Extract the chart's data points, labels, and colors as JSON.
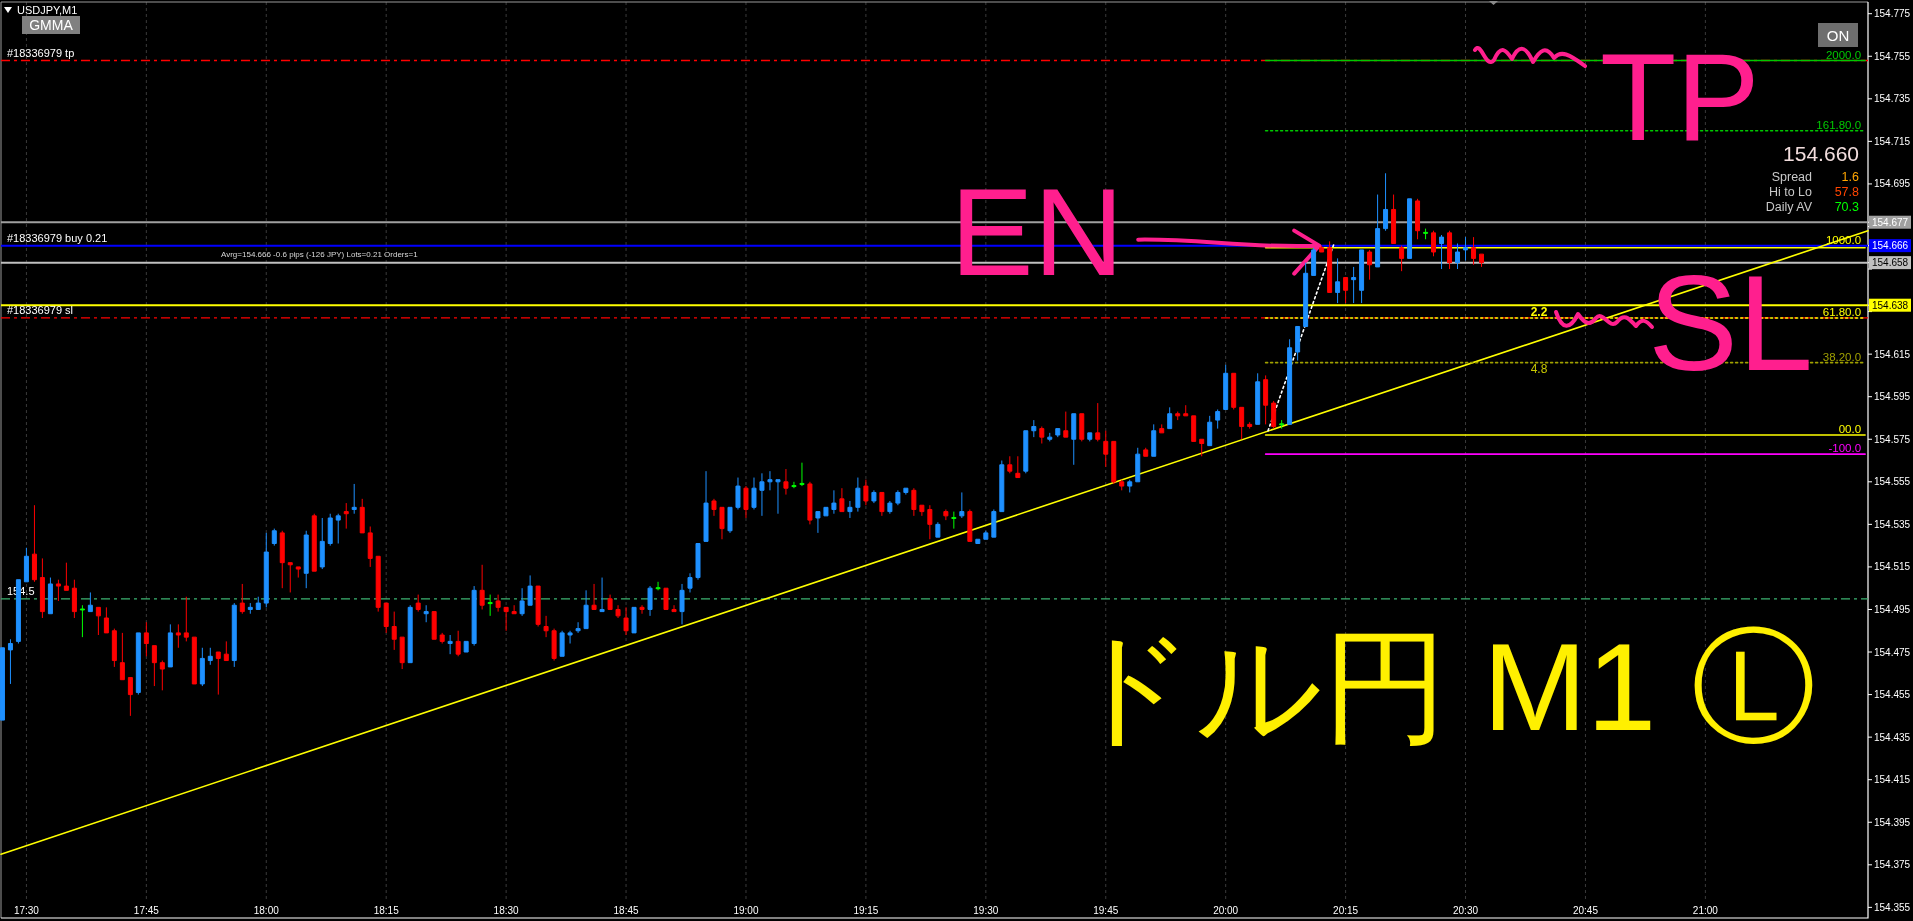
{
  "chart_data": {
    "type": "candlestick",
    "title": "USDJPY,M1",
    "x": [
      17.45,
      17.4667,
      17.4833,
      17.5,
      17.5167,
      17.5333,
      17.55,
      17.5667,
      17.5833,
      17.6,
      17.6167,
      17.6333,
      17.65,
      17.6667,
      17.6833,
      17.7,
      17.7167,
      17.7333,
      17.75,
      17.7667,
      17.7833,
      17.8,
      17.8167,
      17.8333,
      17.85,
      17.8667,
      17.8833,
      17.9,
      17.9167,
      17.9333,
      17.95,
      17.9667,
      17.9833,
      18,
      18.0167,
      18.0333,
      18.05,
      18.0667,
      18.0833,
      18.1,
      18.1167,
      18.1333,
      18.15,
      18.1667,
      18.1833,
      18.2,
      18.2167,
      18.2333,
      18.25,
      18.2667,
      18.2833,
      18.3,
      18.3167,
      18.3333,
      18.35,
      18.3667,
      18.3833,
      18.4,
      18.4167,
      18.4333,
      18.45,
      18.4667,
      18.4833,
      18.5,
      18.5167,
      18.5333,
      18.55,
      18.5667,
      18.5833,
      18.6,
      18.6167,
      18.6333,
      18.65,
      18.6667,
      18.6833,
      18.7,
      18.7167,
      18.7333,
      18.75,
      18.7667,
      18.7833,
      18.8,
      18.8167,
      18.8333,
      18.85,
      18.8667,
      18.8833,
      18.9,
      18.9167,
      18.9333,
      18.95,
      18.9667,
      18.9833,
      19,
      19.0167,
      19.0333,
      19.05,
      19.0667,
      19.0833,
      19.1,
      19.1167,
      19.1333,
      19.15,
      19.1667,
      19.1833,
      19.2,
      19.2167,
      19.2333,
      19.25,
      19.2667,
      19.2833,
      19.3,
      19.3167,
      19.3333,
      19.35,
      19.3667,
      19.3833,
      19.4,
      19.4167,
      19.4333,
      19.45,
      19.4667,
      19.4833,
      19.5,
      19.5167,
      19.5333,
      19.55,
      19.5667,
      19.5833,
      19.6,
      19.6167,
      19.6333,
      19.65,
      19.6667,
      19.6833,
      19.7,
      19.7167,
      19.7333,
      19.75,
      19.7667,
      19.7833,
      19.8,
      19.8167,
      19.8333,
      19.85,
      19.8667,
      19.8833,
      19.9,
      19.9167,
      19.9333,
      19.95,
      19.9667,
      19.9833,
      20,
      20.0167,
      20.0333,
      20.05,
      20.0667,
      20.0833,
      20.1,
      20.1167,
      20.1333,
      20.15,
      20.1667,
      20.1833,
      20.2,
      20.2167,
      20.2333,
      20.25,
      20.2667,
      20.2833,
      20.3,
      20.3167,
      20.3333,
      20.35,
      20.3667,
      20.3833,
      20.4,
      20.4167,
      20.4333,
      20.45,
      20.4667,
      20.4833,
      20.5,
      20.5167,
      20.5333
    ],
    "ohlc": [
      [
        154.443,
        154.477,
        154.443,
        154.477
      ],
      [
        154.476,
        154.481,
        154.46,
        154.479
      ],
      [
        154.48,
        154.509,
        154.479,
        154.509
      ],
      [
        154.508,
        154.524,
        154.508,
        154.52
      ],
      [
        154.521,
        154.544,
        154.508,
        154.509
      ],
      [
        154.51,
        154.519,
        154.491,
        154.494
      ],
      [
        154.493,
        154.51,
        154.493,
        154.507
      ],
      [
        154.507,
        154.509,
        154.499,
        154.506
      ],
      [
        154.506,
        154.517,
        154.504,
        154.504
      ],
      [
        154.505,
        154.509,
        154.491,
        154.494
      ],
      [
        154.495,
        154.497,
        154.482,
        154.495
      ],
      [
        154.494,
        154.503,
        154.494,
        154.497
      ],
      [
        154.496,
        154.496,
        154.483,
        154.492
      ],
      [
        154.491,
        154.496,
        154.484,
        154.484
      ],
      [
        154.485,
        154.486,
        154.468,
        154.471
      ],
      [
        154.47,
        154.484,
        154.462,
        154.462
      ],
      [
        154.463,
        154.463,
        154.445,
        154.455
      ],
      [
        154.456,
        154.484,
        154.455,
        154.484
      ],
      [
        154.484,
        154.489,
        154.473,
        154.479
      ],
      [
        154.478,
        154.478,
        154.459,
        154.47
      ],
      [
        154.47,
        154.471,
        154.457,
        154.467
      ],
      [
        154.468,
        154.488,
        154.468,
        154.484
      ],
      [
        154.484,
        154.488,
        154.477,
        154.483
      ],
      [
        154.484,
        154.501,
        154.48,
        154.482
      ],
      [
        154.482,
        154.482,
        154.46,
        154.46
      ],
      [
        154.46,
        154.477,
        154.459,
        154.472
      ],
      [
        154.471,
        154.477,
        154.469,
        154.473
      ],
      [
        154.475,
        154.475,
        154.455,
        154.472
      ],
      [
        154.474,
        154.48,
        154.471,
        154.471
      ],
      [
        154.471,
        154.498,
        154.468,
        154.497
      ],
      [
        154.498,
        154.507,
        154.493,
        154.494
      ],
      [
        154.495,
        154.498,
        154.493,
        154.496
      ],
      [
        154.495,
        154.501,
        154.495,
        154.498
      ],
      [
        154.498,
        154.531,
        154.496,
        154.522
      ],
      [
        154.526,
        154.533,
        154.525,
        154.532
      ],
      [
        154.531,
        154.532,
        154.505,
        154.517
      ],
      [
        154.517,
        154.517,
        154.503,
        154.516
      ],
      [
        154.515,
        154.515,
        154.51,
        154.514
      ],
      [
        154.512,
        154.532,
        154.505,
        154.53
      ],
      [
        154.539,
        154.54,
        154.513,
        154.513
      ],
      [
        154.515,
        154.538,
        154.514,
        154.527
      ],
      [
        154.526,
        154.54,
        154.525,
        154.538
      ],
      [
        154.537,
        154.54,
        154.526,
        154.539
      ],
      [
        154.541,
        154.545,
        154.533,
        154.54
      ],
      [
        154.542,
        154.554,
        154.54,
        154.543
      ],
      [
        154.543,
        154.547,
        154.531,
        154.531
      ],
      [
        154.531,
        154.534,
        154.515,
        154.519
      ],
      [
        154.52,
        154.52,
        154.494,
        154.496
      ],
      [
        154.498,
        154.498,
        154.484,
        154.487
      ],
      [
        154.487,
        154.494,
        154.476,
        154.481
      ],
      [
        154.482,
        154.482,
        154.467,
        154.47
      ],
      [
        154.47,
        154.497,
        154.47,
        154.496
      ],
      [
        154.498,
        154.502,
        154.494,
        154.495
      ],
      [
        154.493,
        154.497,
        154.489,
        154.494
      ],
      [
        154.494,
        154.494,
        154.481,
        154.481
      ],
      [
        154.483,
        154.484,
        154.479,
        154.48
      ],
      [
        154.479,
        154.483,
        154.474,
        154.48
      ],
      [
        154.48,
        154.485,
        154.473,
        154.474
      ],
      [
        154.475,
        154.48,
        154.475,
        154.48
      ],
      [
        154.479,
        154.506,
        154.478,
        154.504
      ],
      [
        154.504,
        154.516,
        154.495,
        154.497
      ],
      [
        154.498,
        154.502,
        154.492,
        154.498
      ],
      [
        154.499,
        154.502,
        154.494,
        154.496
      ],
      [
        154.496,
        154.496,
        154.485,
        154.494
      ],
      [
        154.494,
        154.497,
        154.493,
        154.493
      ],
      [
        154.493,
        154.505,
        154.492,
        154.499
      ],
      [
        154.497,
        154.511,
        154.497,
        154.506
      ],
      [
        154.506,
        154.506,
        154.487,
        154.488
      ],
      [
        154.487,
        154.492,
        154.482,
        154.485
      ],
      [
        154.485,
        154.486,
        154.471,
        154.472
      ],
      [
        154.473,
        154.485,
        154.473,
        154.484
      ],
      [
        154.483,
        154.485,
        154.479,
        154.484
      ],
      [
        154.485,
        154.489,
        154.484,
        154.486
      ],
      [
        154.486,
        154.504,
        154.486,
        154.497
      ],
      [
        154.497,
        154.507,
        154.495,
        154.495
      ],
      [
        154.494,
        154.51,
        154.494,
        154.495
      ],
      [
        154.5,
        154.502,
        154.495,
        154.495
      ],
      [
        154.495,
        154.497,
        154.491,
        154.492
      ],
      [
        154.491,
        154.496,
        154.483,
        154.485
      ],
      [
        154.484,
        154.496,
        154.484,
        154.496
      ],
      [
        154.496,
        154.497,
        154.493,
        154.495
      ],
      [
        154.495,
        154.506,
        154.492,
        154.505
      ],
      [
        154.505,
        154.508,
        154.504,
        154.505
      ],
      [
        154.505,
        154.505,
        154.495,
        154.495
      ],
      [
        154.495,
        154.497,
        154.494,
        154.494
      ],
      [
        154.494,
        154.507,
        154.488,
        154.504
      ],
      [
        154.505,
        154.512,
        154.503,
        154.51
      ],
      [
        154.51,
        154.526,
        154.509,
        154.526
      ],
      [
        154.527,
        154.56,
        154.527,
        154.545
      ],
      [
        154.546,
        154.547,
        154.539,
        154.542
      ],
      [
        154.543,
        154.543,
        154.528,
        154.533
      ],
      [
        154.532,
        154.543,
        154.531,
        154.543
      ],
      [
        154.543,
        154.557,
        154.542,
        154.553
      ],
      [
        154.552,
        154.553,
        154.538,
        154.542
      ],
      [
        154.543,
        154.557,
        154.542,
        154.552
      ],
      [
        154.551,
        154.559,
        154.539,
        154.555
      ],
      [
        154.555,
        154.56,
        154.551,
        154.556
      ],
      [
        154.555,
        154.556,
        154.54,
        154.556
      ],
      [
        154.555,
        154.561,
        154.549,
        154.552
      ],
      [
        154.553,
        154.555,
        154.552,
        154.553
      ],
      [
        154.554,
        154.564,
        154.553,
        154.554
      ],
      [
        154.554,
        154.555,
        154.535,
        154.537
      ],
      [
        154.538,
        154.541,
        154.531,
        154.541
      ],
      [
        154.539,
        154.543,
        154.539,
        154.543
      ],
      [
        154.542,
        154.551,
        154.54,
        154.545
      ],
      [
        154.547,
        154.552,
        154.541,
        154.541
      ],
      [
        154.541,
        154.546,
        154.538,
        154.543
      ],
      [
        154.543,
        154.557,
        154.541,
        154.552
      ],
      [
        154.553,
        154.556,
        154.544,
        154.546
      ],
      [
        154.546,
        154.551,
        154.545,
        154.55
      ],
      [
        154.55,
        154.55,
        154.539,
        154.541
      ],
      [
        154.541,
        154.546,
        154.54,
        154.545
      ],
      [
        154.545,
        154.551,
        154.544,
        154.55
      ],
      [
        154.55,
        154.552,
        154.549,
        154.552
      ],
      [
        154.551,
        154.552,
        154.539,
        154.542
      ],
      [
        154.544,
        154.544,
        154.539,
        154.541
      ],
      [
        154.542,
        154.544,
        154.528,
        154.535
      ],
      [
        154.529,
        154.536,
        154.529,
        154.535
      ],
      [
        154.541,
        154.542,
        154.537,
        154.539
      ],
      [
        154.538,
        154.541,
        154.533,
        154.538
      ],
      [
        154.539,
        154.55,
        154.538,
        154.541
      ],
      [
        154.541,
        154.542,
        154.527,
        154.527
      ],
      [
        154.526,
        154.528,
        154.526,
        154.528
      ],
      [
        154.528,
        154.532,
        154.528,
        154.531
      ],
      [
        154.529,
        154.542,
        154.529,
        154.541
      ],
      [
        154.541,
        154.565,
        154.541,
        154.563
      ],
      [
        154.563,
        154.567,
        154.559,
        154.56
      ],
      [
        154.559,
        154.567,
        154.557,
        154.557
      ],
      [
        154.56,
        154.579,
        154.559,
        154.579
      ],
      [
        154.579,
        154.584,
        154.576,
        154.581
      ],
      [
        154.58,
        154.581,
        154.573,
        154.576
      ],
      [
        154.575,
        154.578,
        154.574,
        154.576
      ],
      [
        154.577,
        154.58,
        154.576,
        154.58
      ],
      [
        154.579,
        154.588,
        154.576,
        154.576
      ],
      [
        154.575,
        154.587,
        154.563,
        154.587
      ],
      [
        154.587,
        154.587,
        154.574,
        154.575
      ],
      [
        154.575,
        154.578,
        154.574,
        154.578
      ],
      [
        154.578,
        154.592,
        154.574,
        154.575
      ],
      [
        154.574,
        154.579,
        154.562,
        154.568
      ],
      [
        154.574,
        154.574,
        154.554,
        154.555
      ],
      [
        154.555,
        154.556,
        154.551,
        154.553
      ],
      [
        154.553,
        154.556,
        154.55,
        154.555
      ],
      [
        154.555,
        154.571,
        154.555,
        154.568
      ],
      [
        154.57,
        154.571,
        154.567,
        154.567
      ],
      [
        154.567,
        154.582,
        154.567,
        154.579
      ],
      [
        154.58,
        154.582,
        154.578,
        154.578
      ],
      [
        154.58,
        154.59,
        154.58,
        154.587
      ],
      [
        154.587,
        154.588,
        154.584,
        154.586
      ],
      [
        154.587,
        154.591,
        154.586,
        154.586
      ],
      [
        154.586,
        154.586,
        154.574,
        154.574
      ],
      [
        154.575,
        154.575,
        154.567,
        154.573
      ],
      [
        154.572,
        154.586,
        154.572,
        154.583
      ],
      [
        154.584,
        154.589,
        154.58,
        154.588
      ],
      [
        154.589,
        154.61,
        154.589,
        154.606
      ],
      [
        154.606,
        154.606,
        154.589,
        154.59
      ],
      [
        154.59,
        154.59,
        154.575,
        154.581
      ],
      [
        154.582,
        154.583,
        154.58,
        154.581
      ],
      [
        154.582,
        154.606,
        154.582,
        154.602
      ],
      [
        154.603,
        154.605,
        154.582,
        154.591
      ],
      [
        154.592,
        154.593,
        154.58,
        154.581
      ],
      [
        154.582,
        154.584,
        154.58,
        154.582
      ],
      [
        154.582,
        154.622,
        154.582,
        154.618
      ],
      [
        154.616,
        154.628,
        154.612,
        154.628
      ],
      [
        154.628,
        154.658,
        154.628,
        154.653
      ],
      [
        154.652,
        154.665,
        154.652,
        154.664
      ],
      [
        154.665,
        154.666,
        154.663,
        154.663
      ],
      [
        154.665,
        154.668,
        154.644,
        154.644
      ],
      [
        154.644,
        154.66,
        154.639,
        154.649
      ],
      [
        154.651,
        154.651,
        154.639,
        154.645
      ],
      [
        154.65,
        154.656,
        154.639,
        154.651
      ],
      [
        154.645,
        154.664,
        154.639,
        154.664
      ],
      [
        154.663,
        154.664,
        154.65,
        154.657
      ],
      [
        154.656,
        154.69,
        154.656,
        154.674
      ],
      [
        154.674,
        154.7,
        154.673,
        154.683
      ],
      [
        154.683,
        154.69,
        154.667,
        154.667
      ],
      [
        154.665,
        154.666,
        154.654,
        154.66
      ],
      [
        154.66,
        154.688,
        154.66,
        154.688
      ],
      [
        154.687,
        154.688,
        154.669,
        154.673
      ],
      [
        154.672,
        154.674,
        154.669,
        154.672
      ],
      [
        154.672,
        154.673,
        154.661,
        154.663
      ],
      [
        154.667,
        154.671,
        154.655,
        154.67
      ],
      [
        154.672,
        154.673,
        154.655,
        154.658
      ],
      [
        154.658,
        154.667,
        154.655,
        154.663
      ],
      [
        154.664,
        154.67,
        154.659,
        154.665
      ],
      [
        154.665,
        154.67,
        154.657,
        154.66
      ],
      [
        154.662,
        154.662,
        154.656,
        154.658
      ]
    ],
    "colors": [
      "#1e90ff",
      "#1e90ff",
      "#1e90ff",
      "#1e90ff",
      "#ff0000",
      "#ff0000",
      "#1e90ff",
      "#ff0000",
      "#ff0000",
      "#ff0000",
      "#00ff00",
      "#1e90ff",
      "#ff0000",
      "#ff0000",
      "#ff0000",
      "#ff0000",
      "#ff0000",
      "#1e90ff",
      "#ff0000",
      "#ff0000",
      "#ff0000",
      "#1e90ff",
      "#ff0000",
      "#ff0000",
      "#ff0000",
      "#1e90ff",
      "#1e90ff",
      "#ff0000",
      "#ff0000",
      "#1e90ff",
      "#ff0000",
      "#1e90ff",
      "#1e90ff",
      "#1e90ff",
      "#1e90ff",
      "#ff0000",
      "#ff0000",
      "#ff0000",
      "#1e90ff",
      "#ff0000",
      "#1e90ff",
      "#1e90ff",
      "#1e90ff",
      "#ff0000",
      "#1e90ff",
      "#ff0000",
      "#ff0000",
      "#ff0000",
      "#ff0000",
      "#ff0000",
      "#ff0000",
      "#1e90ff",
      "#ff0000",
      "#1e90ff",
      "#ff0000",
      "#ff0000",
      "#1e90ff",
      "#ff0000",
      "#1e90ff",
      "#1e90ff",
      "#ff0000",
      "#00ff00",
      "#ff0000",
      "#ff0000",
      "#ff0000",
      "#1e90ff",
      "#1e90ff",
      "#ff0000",
      "#ff0000",
      "#ff0000",
      "#1e90ff",
      "#1e90ff",
      "#1e90ff",
      "#1e90ff",
      "#ff0000",
      "#1e90ff",
      "#ff0000",
      "#ff0000",
      "#ff0000",
      "#1e90ff",
      "#ff0000",
      "#1e90ff",
      "#00ff00",
      "#ff0000",
      "#ff0000",
      "#1e90ff",
      "#1e90ff",
      "#1e90ff",
      "#1e90ff",
      "#ff0000",
      "#ff0000",
      "#1e90ff",
      "#1e90ff",
      "#ff0000",
      "#1e90ff",
      "#1e90ff",
      "#1e90ff",
      "#1e90ff",
      "#ff0000",
      "#00ff00",
      "#00ff00",
      "#ff0000",
      "#1e90ff",
      "#1e90ff",
      "#1e90ff",
      "#ff0000",
      "#1e90ff",
      "#1e90ff",
      "#ff0000",
      "#1e90ff",
      "#ff0000",
      "#1e90ff",
      "#1e90ff",
      "#1e90ff",
      "#ff0000",
      "#ff0000",
      "#ff0000",
      "#1e90ff",
      "#ff0000",
      "#00ff00",
      "#1e90ff",
      "#ff0000",
      "#1e90ff",
      "#1e90ff",
      "#1e90ff",
      "#1e90ff",
      "#ff0000",
      "#ff0000",
      "#1e90ff",
      "#1e90ff",
      "#ff0000",
      "#1e90ff",
      "#1e90ff",
      "#ff0000",
      "#1e90ff",
      "#ff0000",
      "#1e90ff",
      "#ff0000",
      "#ff0000",
      "#ff0000",
      "#ff0000",
      "#1e90ff",
      "#1e90ff",
      "#ff0000",
      "#1e90ff",
      "#ff0000",
      "#1e90ff",
      "#ff0000",
      "#ff0000",
      "#ff0000",
      "#ff0000",
      "#1e90ff",
      "#1e90ff",
      "#1e90ff",
      "#ff0000",
      "#ff0000",
      "#ff0000",
      "#1e90ff",
      "#ff0000",
      "#ff0000",
      "#00ff00",
      "#1e90ff",
      "#1e90ff",
      "#1e90ff",
      "#1e90ff",
      "#ff0000",
      "#ff0000",
      "#1e90ff",
      "#ff0000",
      "#1e90ff",
      "#1e90ff",
      "#ff0000",
      "#1e90ff",
      "#1e90ff",
      "#ff0000",
      "#ff0000",
      "#1e90ff",
      "#ff0000",
      "#00ff00",
      "#ff0000",
      "#1e90ff",
      "#ff0000",
      "#1e90ff",
      "#1e90ff",
      "#ff0000",
      "#ff0000"
    ],
    "xlim": [
      17.447,
      21.339
    ],
    "xticks": [
      {
        "value": 17.5,
        "label": "17:30"
      },
      {
        "value": 17.75,
        "label": "17:45"
      },
      {
        "value": 18,
        "label": "18:00"
      },
      {
        "value": 18.25,
        "label": "18:15"
      },
      {
        "value": 18.5,
        "label": "18:30"
      },
      {
        "value": 18.75,
        "label": "18:45"
      },
      {
        "value": 19,
        "label": "19:00"
      },
      {
        "value": 19.25,
        "label": "19:15"
      },
      {
        "value": 19.5,
        "label": "19:30"
      },
      {
        "value": 19.75,
        "label": "19:45"
      },
      {
        "value": 20,
        "label": "20:00"
      },
      {
        "value": 20.25,
        "label": "20:15"
      },
      {
        "value": 20.5,
        "label": "20:30"
      },
      {
        "value": 20.75,
        "label": "20:45"
      },
      {
        "value": 21,
        "label": "21:00"
      }
    ],
    "ylim": [
      154.35,
      154.7805
    ],
    "yticks": [
      154.355,
      154.375,
      154.395,
      154.415,
      154.435,
      154.455,
      154.475,
      154.495,
      154.515,
      154.535,
      154.555,
      154.575,
      154.595,
      154.615,
      {
        "value": 154.635,
        "label": null
      },
      154.638,
      {
        "value": 154.655,
        "label": null
      },
      154.658,
      154.666,
      {
        "value": 154.675,
        "label": null
      },
      154.677,
      154.695,
      154.715,
      154.735,
      154.755,
      154.775
    ],
    "grid": "x",
    "legend": "right",
    "series": [
      {
        "type": "line",
        "color": "#ffff00",
        "x": [
          17.447,
          21.339
        ],
        "values": [
          154.38,
          154.673
        ]
      },
      {
        "type": "line",
        "color": "#ffffff",
        "line_style": "dotted",
        "x": [
          20.0883,
          20.226
        ],
        "values": [
          154.579,
          154.667
        ]
      },
      {
        "type": "line",
        "name": "2000.0",
        "color": "#00c800",
        "x": [
          20.0833,
          21.333
        ],
        "values": [
          154.753,
          154.753
        ]
      },
      {
        "type": "line",
        "name": "161.80.0",
        "color": "#00c800",
        "line_style": "dotted",
        "x": [
          20.0833,
          21.333
        ],
        "values": [
          154.72,
          154.72
        ]
      },
      {
        "type": "line",
        "name": "1000.0",
        "color": "#ffff00",
        "x": [
          20.0833,
          21.333
        ],
        "values": [
          154.665,
          154.665
        ]
      },
      {
        "type": "line",
        "name": "61.80.0",
        "color": "#ffff00",
        "line_style": "dotted",
        "x": [
          20.0833,
          21.333
        ],
        "values": [
          154.632,
          154.632
        ]
      },
      {
        "type": "line",
        "name": "38.20.0",
        "color": "#a0a000",
        "line_style": "dotted",
        "x": [
          20.0833,
          21.333
        ],
        "values": [
          154.611,
          154.611
        ]
      },
      {
        "type": "line",
        "name": "00.0",
        "color": "#ffff00",
        "x": [
          20.0833,
          21.333
        ],
        "values": [
          154.577,
          154.577
        ]
      },
      {
        "type": "line",
        "name": "-100.0",
        "color": "#ff00ff",
        "x": [
          20.0833,
          21.333
        ],
        "values": [
          154.568,
          154.568
        ]
      }
    ],
    "ref_lines": [
      {
        "axis": "y",
        "value": 154.753,
        "label": "#18336979 tp",
        "color": "#ff0000",
        "line_style": "dashed"
      },
      {
        "axis": "y",
        "value": 154.677,
        "color": "#a0a0a0"
      },
      {
        "axis": "y",
        "value": 154.666,
        "label": "#18336979 buy 0.21",
        "color": "#0000ff"
      },
      {
        "axis": "y",
        "value": 154.658,
        "color": "#c0c0c0"
      },
      {
        "axis": "y",
        "value": 154.638,
        "color": "#ffff00"
      },
      {
        "axis": "y",
        "value": 154.632,
        "label": "#18336979 sl",
        "color": "#ff0000",
        "line_style": "dashed"
      },
      {
        "axis": "y",
        "value": 154.5,
        "label": "154.5",
        "color": "#3cb371",
        "line_style": "dashed"
      }
    ],
    "annotations": [
      "GMMA",
      "ON",
      "Avrg=154.666 -0.6 pips (-126 JPY) Lots=0.21 Orders=1",
      "154.660",
      "Spread",
      "1.6",
      "Hi to Lo",
      "57.8",
      "Daily AV",
      "70.3",
      {
        "text": "EN",
        "x": 20.195,
        "y": 154.666
      },
      "TP",
      "SL",
      "ドル円 M1 Ⓛ",
      "2.2",
      "4.8"
    ]
  }
}
